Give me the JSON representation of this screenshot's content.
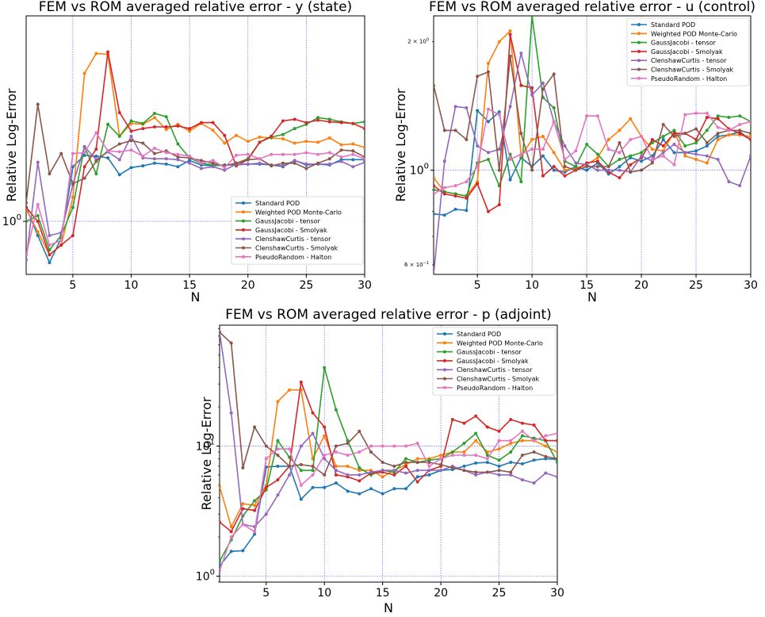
{
  "colors": {
    "Standard POD": "#1f77b4",
    "Weighted POD Monte-Carlo": "#ff7f0e",
    "GaussJacobi - tensor": "#2ca02c",
    "GaussJacobi - Smolyak": "#d62728",
    "ClenshawCurtis - tensor": "#9467bd",
    "ClenshawCurtis - Smolyak": "#8c564b",
    "PseudoRandom - Halton": "#e377c2",
    "grid": "#0000ff"
  },
  "chart_data": [
    {
      "type": "line",
      "title": "FEM vs ROM averaged relative error - y (state)",
      "xlabel": "N",
      "ylabel": "Relative Log-Error",
      "xlim": [
        1,
        30
      ],
      "ylim": [
        0.945,
        1.245
      ],
      "yscale": "log",
      "xticks": [
        5,
        10,
        15,
        20,
        25,
        30
      ],
      "yticks": [
        {
          "value": 1.0,
          "label": "10",
          "exp": "0"
        }
      ],
      "grid": true,
      "legend": "lower-right",
      "x": [
        1,
        2,
        3,
        4,
        5,
        6,
        7,
        8,
        9,
        10,
        11,
        12,
        13,
        14,
        15,
        16,
        17,
        18,
        19,
        20,
        21,
        22,
        23,
        24,
        25,
        26,
        27,
        28,
        29,
        30
      ],
      "series": [
        {
          "name": "Standard POD",
          "values": [
            1.015,
            0.985,
            0.957,
            0.982,
            1.06,
            1.073,
            1.072,
            1.07,
            1.051,
            1.059,
            1.061,
            1.064,
            1.063,
            1.06,
            1.067,
            1.062,
            1.061,
            1.062,
            1.062,
            1.063,
            1.063,
            1.062,
            1.06,
            1.067,
            1.062,
            1.063,
            1.062,
            1.068,
            1.068,
            1.068
          ]
        },
        {
          "name": "Weighted POD Monte-Carlo",
          "values": [
            1.013,
            0.989,
            0.965,
            0.975,
            1.026,
            1.171,
            1.196,
            1.195,
            1.095,
            1.11,
            1.109,
            1.117,
            1.103,
            1.109,
            1.101,
            1.11,
            1.102,
            1.087,
            1.096,
            1.089,
            1.094,
            1.093,
            1.092,
            1.087,
            1.089,
            1.088,
            1.093,
            1.085,
            1.086,
            1.082
          ]
        },
        {
          "name": "GaussJacobi - tensor",
          "values": [
            1.0,
            1.006,
            0.97,
            0.985,
            1.015,
            1.083,
            1.052,
            1.109,
            1.095,
            1.113,
            1.11,
            1.122,
            1.118,
            1.086,
            1.07,
            1.064,
            1.062,
            1.061,
            1.064,
            1.069,
            1.088,
            1.094,
            1.097,
            1.104,
            1.109,
            1.117,
            1.115,
            1.112,
            1.11,
            1.112
          ]
        },
        {
          "name": "GaussJacobi - Smolyak",
          "values": [
            1.015,
            1.0,
            0.965,
            0.975,
            0.985,
            1.06,
            1.08,
            1.198,
            1.123,
            1.101,
            1.104,
            1.106,
            1.106,
            1.107,
            1.104,
            1.111,
            1.111,
            1.096,
            1.061,
            1.068,
            1.088,
            1.095,
            1.113,
            1.115,
            1.111,
            1.114,
            1.112,
            1.111,
            1.11,
            1.104
          ]
        },
        {
          "name": "ClenshawCurtis - tensor",
          "values": [
            0.96,
            1.065,
            0.985,
            0.988,
            1.04,
            1.083,
            1.068,
            1.077,
            1.068,
            1.095,
            1.07,
            1.069,
            1.069,
            1.068,
            1.064,
            1.058,
            1.06,
            1.056,
            1.063,
            1.063,
            1.064,
            1.062,
            1.061,
            1.067,
            1.063,
            1.063,
            1.063,
            1.066,
            1.06,
            1.065
          ]
        },
        {
          "name": "ClenshawCurtis - Smolyak",
          "values": [
            1.02,
            1.133,
            1.052,
            1.075,
            1.041,
            1.047,
            1.066,
            1.078,
            1.086,
            1.09,
            1.087,
            1.075,
            1.078,
            1.071,
            1.07,
            1.067,
            1.064,
            1.061,
            1.064,
            1.068,
            1.069,
            1.061,
            1.064,
            1.064,
            1.058,
            1.064,
            1.069,
            1.079,
            1.078,
            1.071
          ]
        },
        {
          "name": "PseudoRandom - Halton",
          "values": [
            0.965,
            1.018,
            0.975,
            0.98,
            1.075,
            1.076,
            1.099,
            1.078,
            1.077,
            1.079,
            1.072,
            1.081,
            1.076,
            1.074,
            1.072,
            1.064,
            1.067,
            1.059,
            1.073,
            1.074,
            1.069,
            1.074,
            1.074,
            1.074,
            1.076,
            1.074,
            1.076,
            1.071,
            1.074,
            1.069
          ]
        }
      ]
    },
    {
      "type": "line",
      "title": "FEM vs ROM averaged relative error - u (control)",
      "xlabel": "N",
      "ylabel": "Relative Log-Error",
      "xlim": [
        1,
        30
      ],
      "ylim": [
        0.57,
        2.3
      ],
      "yscale": "log",
      "xticks": [
        5,
        10,
        15,
        20,
        25,
        30
      ],
      "yticks": [
        {
          "value": 0.6,
          "label": "6 × 10",
          "exp": "−1",
          "small": true
        },
        {
          "value": 1.0,
          "label": "10",
          "exp": "0"
        },
        {
          "value": 2.0,
          "label": "2 × 10",
          "exp": "0",
          "small": true
        }
      ],
      "grid": true,
      "legend": "top-right",
      "x": [
        1,
        2,
        3,
        4,
        5,
        6,
        7,
        8,
        9,
        10,
        11,
        12,
        13,
        14,
        15,
        16,
        17,
        18,
        19,
        20,
        21,
        22,
        23,
        24,
        25,
        26,
        27,
        28,
        29,
        30
      ],
      "series": [
        {
          "name": "Standard POD",
          "values": [
            0.79,
            0.785,
            0.81,
            0.805,
            1.38,
            1.3,
            1.37,
            0.95,
            1.07,
            1.02,
            1.08,
            1.0,
            0.99,
            1.02,
            1.0,
            1.04,
            0.98,
            1.02,
            1.07,
            1.05,
            1.08,
            1.18,
            1.1,
            1.1,
            1.11,
            1.14,
            1.2,
            1.21,
            1.23,
            1.18
          ]
        },
        {
          "name": "Weighted POD Monte-Carlo",
          "values": [
            0.96,
            0.89,
            0.88,
            0.87,
            0.94,
            1.78,
            2.0,
            2.12,
            1.08,
            1.18,
            1.2,
            1.1,
            1.0,
            1.01,
            1.03,
            1.07,
            1.18,
            1.24,
            1.32,
            1.2,
            1.12,
            1.11,
            1.23,
            1.08,
            1.06,
            1.04,
            1.18,
            1.21,
            1.21,
            1.2
          ]
        },
        {
          "name": "GaussJacobi - tensor",
          "values": [
            0.9,
            0.89,
            0.88,
            0.87,
            1.04,
            1.06,
            0.92,
            1.09,
            0.94,
            2.3,
            1.48,
            1.4,
            1.05,
            1.02,
            1.15,
            1.09,
            1.02,
            1.06,
            1.08,
            1.1,
            1.16,
            1.2,
            1.24,
            1.14,
            1.16,
            1.24,
            1.34,
            1.33,
            1.34,
            1.3
          ]
        },
        {
          "name": "GaussJacobi - Smolyak",
          "values": [
            0.92,
            0.88,
            0.87,
            0.86,
            0.93,
            0.8,
            0.83,
            2.08,
            1.58,
            1.56,
            0.97,
            1.02,
            0.97,
            1.0,
            1.04,
            1.05,
            0.99,
            0.96,
            1.03,
            1.07,
            1.18,
            1.14,
            1.22,
            1.22,
            1.18,
            1.33,
            1.32,
            1.25,
            1.22,
            1.18
          ]
        },
        {
          "name": "ClenshawCurtis - tensor",
          "values": [
            0.57,
            1.05,
            1.41,
            1.4,
            1.14,
            1.1,
            1.12,
            1.41,
            1.88,
            1.5,
            1.6,
            1.3,
            1.14,
            1.04,
            1.03,
            1.0,
            1.0,
            1.0,
            0.99,
            1.08,
            1.05,
            1.1,
            1.15,
            1.1,
            1.09,
            1.08,
            1.06,
            0.94,
            0.92,
            1.08
          ]
        },
        {
          "name": "ClenshawCurtis - Smolyak",
          "values": [
            1.58,
            1.24,
            1.24,
            1.18,
            1.66,
            1.7,
            1.0,
            1.85,
            1.22,
            1.0,
            1.55,
            1.68,
            1.02,
            1.0,
            1.02,
            1.02,
            1.02,
            1.16,
            0.99,
            1.0,
            1.04,
            1.28,
            1.2,
            1.22,
            1.25,
            1.16,
            1.22,
            1.24,
            1.24,
            1.22
          ]
        },
        {
          "name": "PseudoRandom - Halton",
          "values": [
            0.88,
            0.91,
            0.92,
            0.94,
            1.02,
            1.39,
            1.35,
            1.06,
            1.09,
            1.12,
            1.12,
            1.3,
            1.06,
            1.11,
            1.34,
            1.34,
            1.12,
            1.1,
            1.18,
            1.2,
            1.06,
            1.08,
            1.03,
            1.35,
            1.36,
            1.36,
            1.26,
            1.24,
            1.28,
            1.3
          ]
        }
      ]
    },
    {
      "type": "line",
      "title": "FEM vs ROM averaged relative error - p (adjoint)",
      "xlabel": "N",
      "ylabel": "Relative Log-Error",
      "xlim": [
        1,
        30
      ],
      "ylim": [
        0.9,
        85
      ],
      "yscale": "log",
      "xticks": [
        5,
        10,
        15,
        20,
        25,
        30
      ],
      "yticks": [
        {
          "value": 1,
          "label": "10",
          "exp": "0"
        },
        {
          "value": 10,
          "label": "10",
          "exp": "1"
        }
      ],
      "grid": true,
      "legend": "top-right",
      "x": [
        1,
        2,
        3,
        4,
        5,
        6,
        7,
        8,
        9,
        10,
        11,
        12,
        13,
        14,
        15,
        16,
        17,
        18,
        19,
        20,
        21,
        22,
        23,
        24,
        25,
        26,
        27,
        28,
        29,
        30
      ],
      "series": [
        {
          "name": "Standard POD",
          "values": [
            1.2,
            1.55,
            1.57,
            2.1,
            6.9,
            7.0,
            7.0,
            3.9,
            4.8,
            4.8,
            5.2,
            4.5,
            4.3,
            4.7,
            4.3,
            4.7,
            4.7,
            5.8,
            6.0,
            6.5,
            6.6,
            7.0,
            7.4,
            7.5,
            7.0,
            7.5,
            7.3,
            7.8,
            8.0,
            7.9
          ]
        },
        {
          "name": "Weighted POD Monte-Carlo",
          "values": [
            4.9,
            2.4,
            3.6,
            3.5,
            5.0,
            22.0,
            27.0,
            27.0,
            8.0,
            12.0,
            7.0,
            7.0,
            6.5,
            6.5,
            5.8,
            6.5,
            7.2,
            8.0,
            8.0,
            8.5,
            9.0,
            9.0,
            11.0,
            9.0,
            9.5,
            10.5,
            11.0,
            11.0,
            10.0,
            9.0
          ]
        },
        {
          "name": "GaussJacobi - tensor",
          "values": [
            1.3,
            1.9,
            2.9,
            3.8,
            4.6,
            11.0,
            8.2,
            6.5,
            6.5,
            40.0,
            19.0,
            11.0,
            6.8,
            6.0,
            6.5,
            6.3,
            8.0,
            7.5,
            7.8,
            8.0,
            9.0,
            10.5,
            12.5,
            8.5,
            7.8,
            9.0,
            12.0,
            11.5,
            11.0,
            7.5
          ]
        },
        {
          "name": "GaussJacobi - Smolyak",
          "values": [
            2.6,
            2.2,
            3.3,
            3.2,
            4.8,
            5.5,
            7.0,
            31.0,
            18.0,
            14.0,
            6.0,
            5.8,
            5.4,
            6.2,
            6.3,
            6.0,
            7.0,
            5.3,
            6.5,
            7.0,
            16.0,
            15.0,
            17.0,
            14.0,
            13.0,
            16.0,
            15.0,
            14.5,
            11.0,
            11.0
          ]
        },
        {
          "name": "ClenshawCurtis - tensor",
          "values": [
            75.0,
            18.0,
            2.5,
            2.4,
            3.0,
            4.2,
            6.0,
            10.0,
            12.5,
            8.0,
            6.5,
            6.0,
            6.0,
            6.3,
            6.5,
            6.5,
            6.2,
            6.5,
            6.5,
            6.5,
            7.0,
            6.5,
            6.0,
            6.3,
            6.0,
            6.0,
            5.5,
            5.2,
            6.2,
            5.8
          ]
        },
        {
          "name": "ClenshawCurtis - Smolyak",
          "values": [
            75.0,
            62.0,
            6.8,
            14.0,
            10.0,
            8.5,
            7.0,
            7.2,
            7.0,
            6.0,
            10.0,
            10.5,
            13.0,
            9.0,
            7.5,
            7.0,
            7.5,
            7.5,
            7.5,
            7.2,
            6.8,
            6.5,
            6.3,
            6.3,
            6.5,
            6.3,
            8.5,
            9.0,
            8.3,
            8.0
          ]
        },
        {
          "name": "PseudoRandom - Halton",
          "values": [
            1.1,
            2.0,
            2.5,
            2.2,
            8.0,
            9.5,
            9.5,
            5.0,
            6.0,
            8.5,
            9.0,
            8.5,
            9.0,
            10.0,
            10.0,
            10.0,
            10.0,
            10.5,
            7.0,
            8.0,
            8.5,
            8.5,
            8.5,
            8.0,
            11.0,
            11.0,
            13.0,
            11.0,
            12.0,
            12.5
          ]
        }
      ]
    }
  ]
}
